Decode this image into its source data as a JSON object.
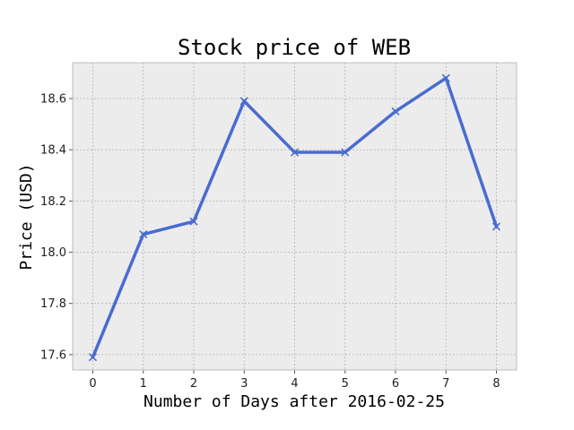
{
  "chart_data": {
    "type": "line",
    "title": "Stock price of WEB",
    "xlabel": "Number of Days after 2016-02-25",
    "ylabel": "Price (USD)",
    "x": [
      0,
      1,
      2,
      3,
      4,
      5,
      6,
      7,
      8
    ],
    "x_ticks": [
      "0",
      "1",
      "2",
      "3",
      "4",
      "5",
      "6",
      "7",
      "8"
    ],
    "y_ticks": [
      "17.6",
      "17.8",
      "18.0",
      "18.2",
      "18.4",
      "18.6"
    ],
    "xlim": [
      -0.4,
      8.4
    ],
    "ylim": [
      17.54,
      18.74
    ],
    "grid": true,
    "marker": "x",
    "series": [
      {
        "values": [
          17.59,
          18.07,
          18.12,
          18.59,
          18.39,
          18.39,
          18.55,
          18.68,
          18.1
        ]
      }
    ],
    "colors": {
      "line": "#4a6bd0",
      "plot_background": "#ececec",
      "grid": "#b4b4b4",
      "frame": "#bcbcbc"
    }
  }
}
